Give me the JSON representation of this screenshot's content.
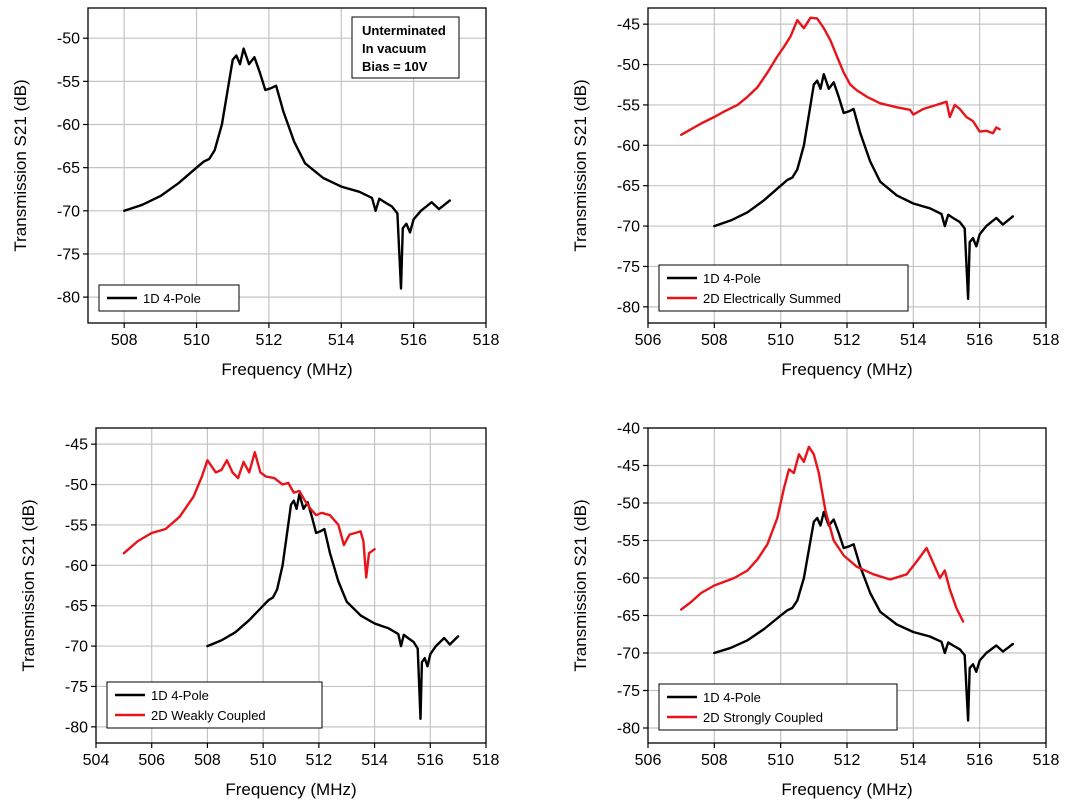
{
  "chart_data": [
    {
      "type": "line",
      "xlabel": "Frequency (MHz)",
      "ylabel": "Transmission S21 (dB)",
      "xlim": [
        507,
        518
      ],
      "ylim": [
        -83,
        -46.5
      ],
      "xticks": [
        508,
        510,
        512,
        514,
        516,
        518
      ],
      "yticks": [
        -80,
        -75,
        -70,
        -65,
        -60,
        -55,
        -50
      ],
      "grid": true,
      "legend_position": "bottom-left",
      "annotation": [
        "Unterminated",
        "In vacuum",
        "Bias = 10V"
      ],
      "series": [
        {
          "name": "1D 4-Pole",
          "color": "#000000",
          "x": [
            508.0,
            508.5,
            509.0,
            509.5,
            510.0,
            510.2,
            510.35,
            510.5,
            510.7,
            510.9,
            511.0,
            511.1,
            511.2,
            511.3,
            511.45,
            511.6,
            511.75,
            511.9,
            512.05,
            512.2,
            512.4,
            512.7,
            513.0,
            513.5,
            514.0,
            514.5,
            514.85,
            514.95,
            515.05,
            515.2,
            515.4,
            515.55,
            515.65,
            515.7,
            515.8,
            515.9,
            516.0,
            516.2,
            516.5,
            516.7,
            516.85,
            517.0
          ],
          "y": [
            -70.0,
            -69.3,
            -68.3,
            -66.8,
            -65.0,
            -64.3,
            -64.0,
            -63.0,
            -60.0,
            -55.0,
            -52.5,
            -52.0,
            -53.0,
            -51.2,
            -53.0,
            -52.2,
            -54.0,
            -56.0,
            -55.8,
            -55.5,
            -58.5,
            -62.0,
            -64.5,
            -66.2,
            -67.2,
            -67.8,
            -68.5,
            -70.0,
            -68.6,
            -69.0,
            -69.5,
            -70.3,
            -79.0,
            -72.0,
            -71.5,
            -72.5,
            -71.0,
            -70.0,
            -69.0,
            -69.8,
            -69.3,
            -68.8
          ]
        }
      ]
    },
    {
      "type": "line",
      "xlabel": "Frequency (MHz)",
      "ylabel": "Transmission S21 (dB)",
      "xlim": [
        506,
        518
      ],
      "ylim": [
        -82,
        -43
      ],
      "xticks": [
        506,
        508,
        510,
        512,
        514,
        516,
        518
      ],
      "yticks": [
        -80,
        -75,
        -70,
        -65,
        -60,
        -55,
        -50,
        -45
      ],
      "grid": true,
      "legend_position": "bottom-left",
      "series": [
        {
          "name": "1D 4-Pole",
          "color": "#000000",
          "x": [
            508.0,
            508.5,
            509.0,
            509.5,
            510.0,
            510.2,
            510.35,
            510.5,
            510.7,
            510.9,
            511.0,
            511.1,
            511.2,
            511.3,
            511.45,
            511.6,
            511.75,
            511.9,
            512.05,
            512.2,
            512.4,
            512.7,
            513.0,
            513.5,
            514.0,
            514.5,
            514.85,
            514.95,
            515.05,
            515.2,
            515.4,
            515.55,
            515.65,
            515.7,
            515.8,
            515.9,
            516.0,
            516.2,
            516.5,
            516.7,
            516.85,
            517.0
          ],
          "y": [
            -70.0,
            -69.3,
            -68.3,
            -66.8,
            -65.0,
            -64.3,
            -64.0,
            -63.0,
            -60.0,
            -55.0,
            -52.5,
            -52.0,
            -53.0,
            -51.2,
            -53.0,
            -52.2,
            -54.0,
            -56.0,
            -55.8,
            -55.5,
            -58.5,
            -62.0,
            -64.5,
            -66.2,
            -67.2,
            -67.8,
            -68.5,
            -70.0,
            -68.6,
            -69.0,
            -69.5,
            -70.3,
            -79.0,
            -72.0,
            -71.5,
            -72.5,
            -71.0,
            -70.0,
            -69.0,
            -69.8,
            -69.3,
            -68.8
          ]
        },
        {
          "name": "2D Electrically Summed",
          "color": "#e8141b",
          "x": [
            507.0,
            507.3,
            507.6,
            508.0,
            508.3,
            508.7,
            509.0,
            509.3,
            509.6,
            509.9,
            510.1,
            510.3,
            510.5,
            510.7,
            510.9,
            511.1,
            511.3,
            511.5,
            511.7,
            511.9,
            512.1,
            512.3,
            512.6,
            513.0,
            513.5,
            513.9,
            514.0,
            514.3,
            514.7,
            515.0,
            515.1,
            515.25,
            515.4,
            515.6,
            515.8,
            516.0,
            516.2,
            516.4,
            516.5,
            516.6
          ],
          "y": [
            -58.7,
            -58.0,
            -57.3,
            -56.5,
            -55.8,
            -55.0,
            -54.0,
            -52.8,
            -51.0,
            -49.0,
            -47.8,
            -46.5,
            -44.5,
            -45.5,
            -44.2,
            -44.3,
            -45.5,
            -47.0,
            -49.0,
            -51.0,
            -52.5,
            -53.2,
            -54.0,
            -54.8,
            -55.3,
            -55.6,
            -56.2,
            -55.5,
            -55.0,
            -54.6,
            -56.5,
            -55.0,
            -55.5,
            -56.5,
            -57.0,
            -58.3,
            -58.2,
            -58.5,
            -57.8,
            -58.0
          ]
        }
      ]
    },
    {
      "type": "line",
      "xlabel": "Frequency (MHz)",
      "ylabel": "Transmission S21 (dB)",
      "xlim": [
        504,
        518
      ],
      "ylim": [
        -82,
        -43
      ],
      "xticks": [
        504,
        506,
        508,
        510,
        512,
        514,
        516,
        518
      ],
      "yticks": [
        -80,
        -75,
        -70,
        -65,
        -60,
        -55,
        -50,
        -45
      ],
      "grid": true,
      "legend_position": "bottom-left",
      "series": [
        {
          "name": "1D 4-Pole",
          "color": "#000000",
          "x": [
            508.0,
            508.5,
            509.0,
            509.5,
            510.0,
            510.2,
            510.35,
            510.5,
            510.7,
            510.9,
            511.0,
            511.1,
            511.2,
            511.3,
            511.45,
            511.6,
            511.75,
            511.9,
            512.05,
            512.2,
            512.4,
            512.7,
            513.0,
            513.5,
            514.0,
            514.5,
            514.85,
            514.95,
            515.05,
            515.2,
            515.4,
            515.55,
            515.65,
            515.7,
            515.8,
            515.9,
            516.0,
            516.2,
            516.5,
            516.7,
            516.85,
            517.0
          ],
          "y": [
            -70.0,
            -69.3,
            -68.3,
            -66.8,
            -65.0,
            -64.3,
            -64.0,
            -63.0,
            -60.0,
            -55.0,
            -52.5,
            -52.0,
            -53.0,
            -51.2,
            -53.0,
            -52.2,
            -54.0,
            -56.0,
            -55.8,
            -55.5,
            -58.5,
            -62.0,
            -64.5,
            -66.2,
            -67.2,
            -67.8,
            -68.5,
            -70.0,
            -68.6,
            -69.0,
            -69.5,
            -70.3,
            -79.0,
            -72.0,
            -71.5,
            -72.5,
            -71.0,
            -70.0,
            -69.0,
            -69.8,
            -69.3,
            -68.8
          ]
        },
        {
          "name": "2D Weakly Coupled",
          "color": "#e8141b",
          "x": [
            505.0,
            505.5,
            506.0,
            506.5,
            507.0,
            507.5,
            507.8,
            508.0,
            508.3,
            508.5,
            508.7,
            508.9,
            509.1,
            509.3,
            509.5,
            509.7,
            509.9,
            510.1,
            510.4,
            510.7,
            510.9,
            511.1,
            511.3,
            511.5,
            511.7,
            511.9,
            512.1,
            512.4,
            512.7,
            512.9,
            513.1,
            513.3,
            513.5,
            513.6,
            513.7,
            513.8,
            514.0
          ],
          "y": [
            -58.5,
            -57.0,
            -56.0,
            -55.5,
            -54.0,
            -51.5,
            -49.0,
            -47.0,
            -48.5,
            -48.2,
            -47.0,
            -48.5,
            -49.2,
            -47.2,
            -48.5,
            -46.0,
            -48.5,
            -49.0,
            -49.2,
            -50.0,
            -49.8,
            -51.0,
            -50.8,
            -52.0,
            -53.0,
            -53.8,
            -53.5,
            -53.8,
            -55.0,
            -57.5,
            -56.2,
            -56.0,
            -55.8,
            -57.0,
            -61.5,
            -58.5,
            -58.0
          ]
        }
      ]
    },
    {
      "type": "line",
      "xlabel": "Frequency (MHz)",
      "ylabel": "Transmission S21 (dB)",
      "xlim": [
        506,
        518
      ],
      "ylim": [
        -82,
        -40
      ],
      "xticks": [
        506,
        508,
        510,
        512,
        514,
        516,
        518
      ],
      "yticks": [
        -80,
        -75,
        -70,
        -65,
        -60,
        -55,
        -50,
        -45,
        -40
      ],
      "grid": true,
      "legend_position": "bottom-left",
      "series": [
        {
          "name": "1D 4-Pole",
          "color": "#000000",
          "x": [
            508.0,
            508.5,
            509.0,
            509.5,
            510.0,
            510.2,
            510.35,
            510.5,
            510.7,
            510.9,
            511.0,
            511.1,
            511.2,
            511.3,
            511.45,
            511.6,
            511.75,
            511.9,
            512.05,
            512.2,
            512.4,
            512.7,
            513.0,
            513.5,
            514.0,
            514.5,
            514.85,
            514.95,
            515.05,
            515.2,
            515.4,
            515.55,
            515.65,
            515.7,
            515.8,
            515.9,
            516.0,
            516.2,
            516.5,
            516.7,
            516.85,
            517.0
          ],
          "y": [
            -70.0,
            -69.3,
            -68.3,
            -66.8,
            -65.0,
            -64.3,
            -64.0,
            -63.0,
            -60.0,
            -55.0,
            -52.5,
            -52.0,
            -53.0,
            -51.2,
            -53.0,
            -52.2,
            -54.0,
            -56.0,
            -55.8,
            -55.5,
            -58.5,
            -62.0,
            -64.5,
            -66.2,
            -67.2,
            -67.8,
            -68.5,
            -70.0,
            -68.6,
            -69.0,
            -69.5,
            -70.3,
            -79.0,
            -72.0,
            -71.5,
            -72.5,
            -71.0,
            -70.0,
            -69.0,
            -69.8,
            -69.3,
            -68.8
          ]
        },
        {
          "name": "2D Strongly Coupled",
          "color": "#e8141b",
          "x": [
            507.0,
            507.3,
            507.6,
            508.0,
            508.3,
            508.6,
            509.0,
            509.3,
            509.6,
            509.9,
            510.1,
            510.25,
            510.4,
            510.55,
            510.7,
            510.85,
            511.0,
            511.15,
            511.35,
            511.6,
            511.9,
            512.3,
            512.8,
            513.3,
            513.8,
            514.1,
            514.4,
            514.6,
            514.8,
            514.95,
            515.1,
            515.3,
            515.5
          ],
          "y": [
            -64.2,
            -63.2,
            -62.0,
            -61.0,
            -60.5,
            -60.0,
            -59.0,
            -57.5,
            -55.5,
            -52.0,
            -48.0,
            -45.5,
            -46.0,
            -43.5,
            -44.5,
            -42.5,
            -43.5,
            -46.0,
            -51.0,
            -55.0,
            -57.0,
            -58.5,
            -59.5,
            -60.2,
            -59.5,
            -57.8,
            -56.0,
            -58.0,
            -60.0,
            -59.0,
            -61.5,
            -64.0,
            -65.8
          ]
        }
      ]
    }
  ]
}
